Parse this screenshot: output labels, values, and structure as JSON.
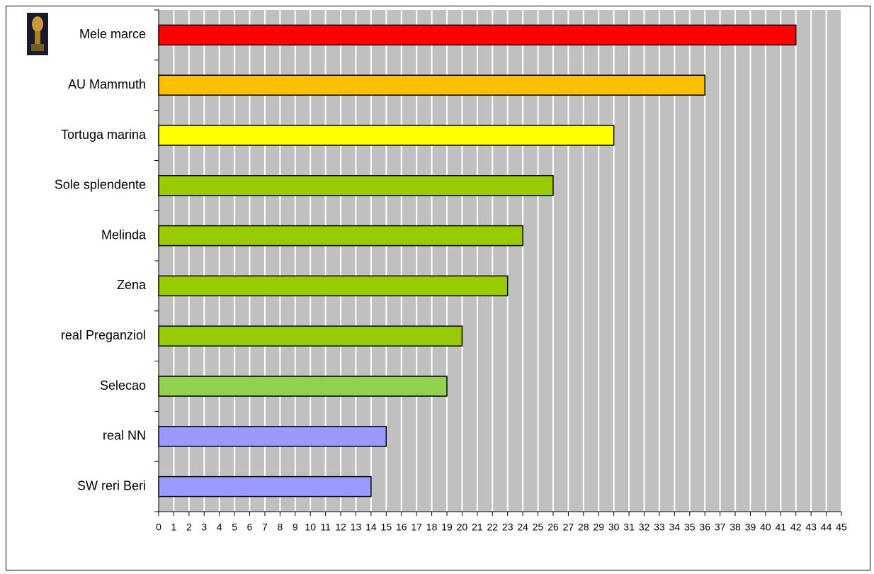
{
  "chart_data": {
    "type": "hbar",
    "categories": [
      "Mele marce",
      "AU Mammuth",
      "Tortuga marina",
      "Sole splendente",
      "Melinda",
      "Zena",
      "real Preganziol",
      "Selecao",
      "real NN",
      "SW reri Beri"
    ],
    "values": [
      42,
      36,
      30,
      26,
      24,
      23,
      20,
      19,
      15,
      14
    ],
    "colors": [
      "#ff0000",
      "#ffc000",
      "#ffff00",
      "#99cc00",
      "#99cc00",
      "#99cc00",
      "#99cc00",
      "#92d050",
      "#9999ff",
      "#9999ff"
    ],
    "xlim": [
      0,
      45
    ],
    "xticks": [
      0,
      1,
      2,
      3,
      4,
      5,
      6,
      7,
      8,
      9,
      10,
      11,
      12,
      13,
      14,
      15,
      16,
      17,
      18,
      19,
      20,
      21,
      22,
      23,
      24,
      25,
      26,
      27,
      28,
      29,
      30,
      31,
      32,
      33,
      34,
      35,
      36,
      37,
      38,
      39,
      40,
      41,
      42,
      43,
      44,
      45
    ],
    "grid": true
  }
}
